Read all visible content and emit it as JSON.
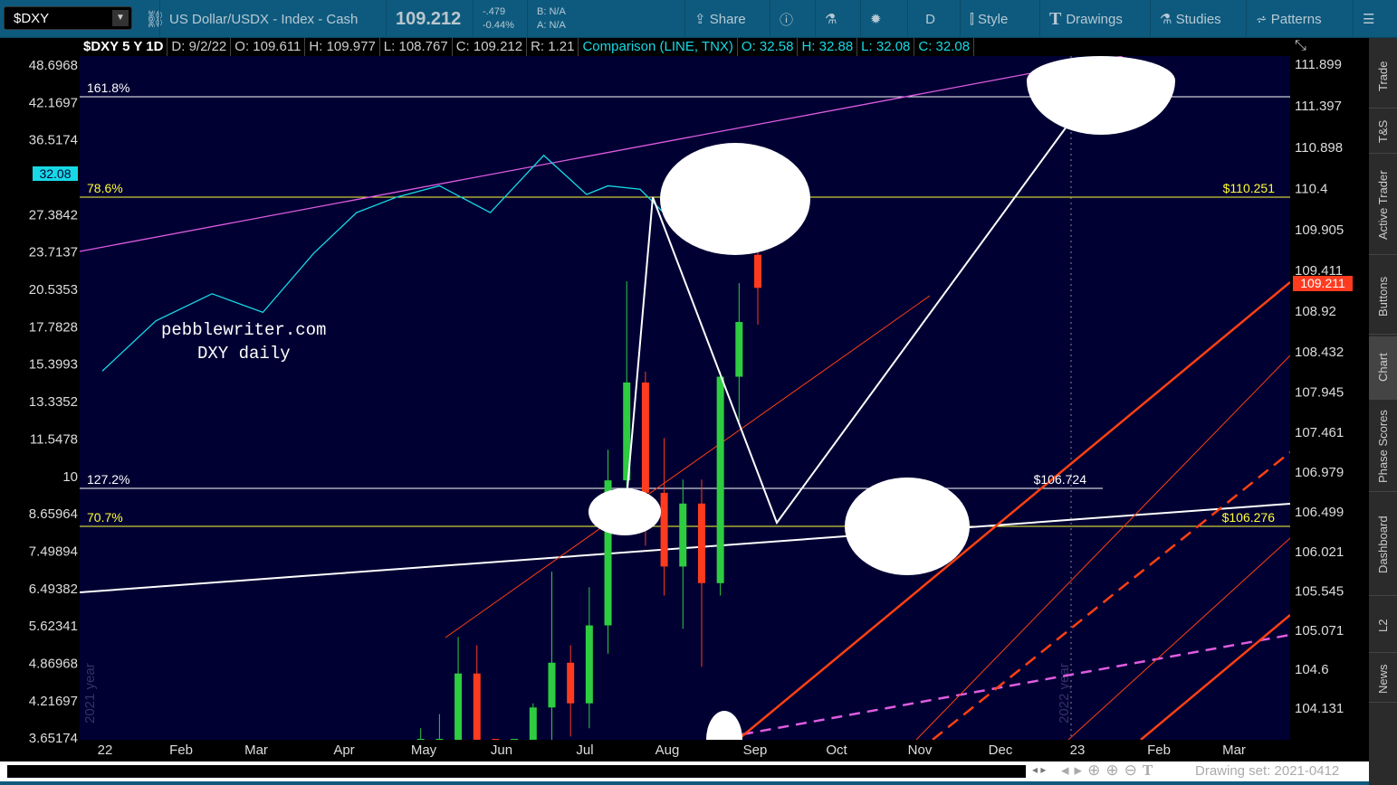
{
  "toolbar": {
    "symbol": "$DXY",
    "description": "US Dollar/USDX - Index - Cash",
    "last": "109.212",
    "change": "-.479",
    "change_pct": "-0.44%",
    "bid": "B: N/A",
    "ask": "A: N/A",
    "buttons": [
      "Share",
      "Style",
      "Drawings",
      "Studies",
      "Patterns"
    ],
    "aggregation": "D"
  },
  "header": {
    "title": "$DXY 5 Y 1D",
    "date": "D: 9/2/22",
    "open": "O: 109.611",
    "high": "H: 109.977",
    "low": "L: 108.767",
    "close": "C: 109.212",
    "range": "R: 1.21",
    "comparison": "Comparison (LINE, TNX)",
    "c_open": "O: 32.58",
    "c_high": "H: 32.88",
    "c_low": "L: 32.08",
    "c_close": "C: 32.08"
  },
  "side_tabs": [
    "Trade",
    "T&S",
    "Active Trader",
    "Buttons",
    "Chart",
    "Phase Scores",
    "Dashboard",
    "L2",
    "News"
  ],
  "footer": {
    "drawing_set": "Drawing set: 2021-0412"
  },
  "annotations": {
    "watermark_line1": "pebblewriter.com",
    "watermark_line2": "DXY daily",
    "fib_1618": "161.8%",
    "fib_786": "78.6%",
    "fib_1272": "127.2%",
    "fib_707": "70.7%",
    "price_786": "$110.251",
    "price_1272": "$106.724",
    "price_707": "$106.276",
    "year_2021": "2021 year",
    "year_2022": "2022 year"
  },
  "colors": {
    "up": "#2ecc40",
    "down": "#ff3b1f",
    "comparison": "#17d9e6",
    "fib_yellow": "#ffff33",
    "magenta": "#e05ce0",
    "orange": "#ff4010",
    "background": "#000033"
  },
  "chart_data": {
    "type": "candlestick",
    "x_ticks": [
      "22",
      "Feb",
      "Mar",
      "Apr",
      "May",
      "Jun",
      "Jul",
      "Aug",
      "Sep",
      "Oct",
      "Nov",
      "Dec",
      "23",
      "Feb",
      "Mar"
    ],
    "right_axis_ticks": [
      "111.899",
      "111.397",
      "110.898",
      "110.4",
      "109.905",
      "109.411",
      "108.92",
      "108.432",
      "107.945",
      "107.461",
      "106.979",
      "106.499",
      "106.021",
      "105.545",
      "105.071",
      "104.6",
      "104.131"
    ],
    "left_axis_ticks": [
      "48.6968",
      "42.1697",
      "36.5174",
      "32.08",
      "27.3842",
      "23.7137",
      "20.5353",
      "17.7828",
      "15.3993",
      "13.3352",
      "11.5478",
      "10",
      "8.65964",
      "7.49894",
      "6.49382",
      "5.62341",
      "4.86968",
      "4.21697",
      "3.65174"
    ],
    "last_price_label": "109.211",
    "comparison_last_label": "32.08",
    "ylim_right": [
      103.76,
      111.97
    ],
    "candles": [
      {
        "d": "2022-04-29",
        "o": 103.0,
        "h": 103.9,
        "l": 102.4,
        "c": 103.0
      },
      {
        "d": "2022-05-06",
        "o": 103.0,
        "h": 104.07,
        "l": 102.35,
        "c": 103.66
      },
      {
        "d": "2022-05-13",
        "o": 103.66,
        "h": 105.0,
        "l": 103.4,
        "c": 104.56
      },
      {
        "d": "2022-05-20",
        "o": 104.56,
        "h": 104.9,
        "l": 102.66,
        "c": 103.0
      },
      {
        "d": "2022-05-27",
        "o": 103.0,
        "h": 103.2,
        "l": 101.43,
        "c": 101.67
      },
      {
        "d": "2022-06-03",
        "o": 101.67,
        "h": 102.7,
        "l": 101.3,
        "c": 102.14
      },
      {
        "d": "2022-06-10",
        "o": 102.14,
        "h": 104.2,
        "l": 101.9,
        "c": 104.15
      },
      {
        "d": "2022-06-17",
        "o": 104.15,
        "h": 105.79,
        "l": 103.4,
        "c": 104.69
      },
      {
        "d": "2022-06-24",
        "o": 104.69,
        "h": 104.9,
        "l": 103.8,
        "c": 104.2
      },
      {
        "d": "2022-07-01",
        "o": 104.2,
        "h": 105.6,
        "l": 103.9,
        "c": 105.14
      },
      {
        "d": "2022-07-08",
        "o": 105.14,
        "h": 107.26,
        "l": 104.8,
        "c": 106.89
      },
      {
        "d": "2022-07-15",
        "o": 106.89,
        "h": 109.29,
        "l": 106.6,
        "c": 108.07
      },
      {
        "d": "2022-07-22",
        "o": 108.07,
        "h": 108.2,
        "l": 106.1,
        "c": 106.74
      },
      {
        "d": "2022-07-29",
        "o": 106.74,
        "h": 107.4,
        "l": 105.5,
        "c": 105.85
      },
      {
        "d": "2022-08-05",
        "o": 105.85,
        "h": 106.9,
        "l": 105.1,
        "c": 106.61
      },
      {
        "d": "2022-08-12",
        "o": 106.61,
        "h": 106.9,
        "l": 104.64,
        "c": 105.65
      },
      {
        "d": "2022-08-19",
        "o": 105.65,
        "h": 108.2,
        "l": 105.5,
        "c": 108.14
      },
      {
        "d": "2022-08-26",
        "o": 108.14,
        "h": 109.27,
        "l": 107.6,
        "c": 108.8
      },
      {
        "d": "2022-09-02",
        "o": 109.611,
        "h": 109.977,
        "l": 108.767,
        "c": 109.212
      }
    ],
    "comparison_series": {
      "name": "TNX",
      "points": [
        [
          "2021-12-31",
          15.0
        ],
        [
          "2022-01-20",
          18.2
        ],
        [
          "2022-02-10",
          20.2
        ],
        [
          "2022-03-01",
          18.8
        ],
        [
          "2022-03-20",
          23.6
        ],
        [
          "2022-04-05",
          27.6
        ],
        [
          "2022-04-20",
          29.3
        ],
        [
          "2022-05-06",
          30.6
        ],
        [
          "2022-05-25",
          27.6
        ],
        [
          "2022-06-14",
          34.4
        ],
        [
          "2022-06-30",
          29.6
        ],
        [
          "2022-07-08",
          30.6
        ],
        [
          "2022-07-20",
          30.2
        ],
        [
          "2022-08-01",
          26.7
        ],
        [
          "2022-08-15",
          28.6
        ],
        [
          "2022-08-25",
          30.6
        ],
        [
          "2022-09-02",
          32.08
        ]
      ]
    }
  }
}
